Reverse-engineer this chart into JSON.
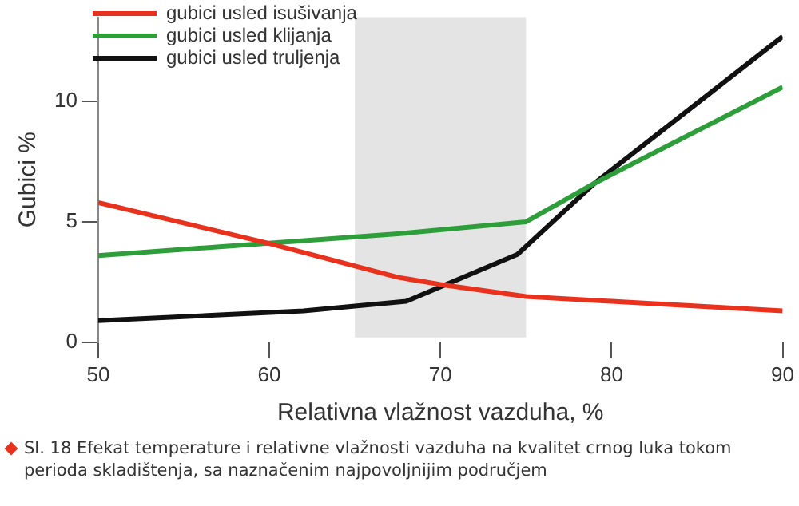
{
  "chart_data": {
    "type": "line",
    "xlabel": "Relativna vlažnost vazduha, %",
    "ylabel": "Gubici %",
    "xlim": [
      50,
      90
    ],
    "xticks": [
      50,
      60,
      70,
      80,
      90
    ],
    "ylim": [
      0,
      13.5
    ],
    "yticks": [
      0,
      5,
      10
    ],
    "series": [
      {
        "name": "gubici usled isušivanja",
        "color": "#e8321e",
        "x": [
          50,
          60,
          67.5,
          70,
          75,
          80,
          90
        ],
        "values": [
          5.8,
          4.1,
          2.7,
          2.4,
          1.9,
          1.7,
          1.3
        ]
      },
      {
        "name": "gubici usled klijanja",
        "color": "#2e9e3a",
        "x": [
          50,
          67.5,
          75,
          79,
          90
        ],
        "values": [
          3.6,
          4.5,
          5.0,
          6.6,
          10.6
        ]
      },
      {
        "name": "gubici usled truljenja",
        "color": "#111111",
        "x": [
          50,
          62,
          68,
          74.5,
          79,
          90
        ],
        "values": [
          0.9,
          1.3,
          1.7,
          3.65,
          6.6,
          12.7
        ]
      }
    ],
    "bands": [
      {
        "axis": "x",
        "from": 65,
        "to": 75,
        "color": "#e4e4e4"
      }
    ],
    "legend": "top left",
    "grid": false,
    "marker": "none",
    "line_style": "solid",
    "annotations": [
      "Sl. 18 Efekat temperature i relativne vlažnosti vazduha na kvalitet crnog luka tokom perioda skladištenja, sa naznačenim najpovoljnijim područjem"
    ]
  }
}
